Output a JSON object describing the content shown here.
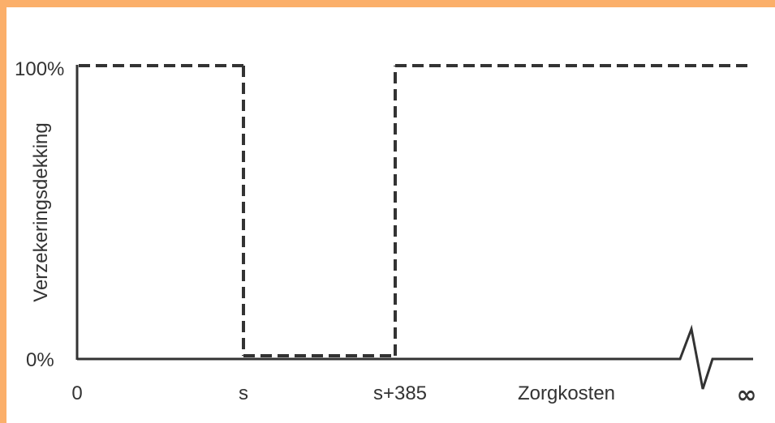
{
  "chart_data": {
    "type": "line",
    "title": "",
    "ylabel": "Verzekeringsdekking",
    "xlabel": "Zorgkosten",
    "x_ticks": [
      "0",
      "s",
      "s+385",
      "∞"
    ],
    "y_ticks": [
      "0%",
      "100%"
    ],
    "series": [
      {
        "points": [
          {
            "x": "0",
            "y": 100
          },
          {
            "x": "s",
            "y": 100
          },
          {
            "x": "s",
            "y": 0
          },
          {
            "x": "s+385",
            "y": 0
          },
          {
            "x": "s+385",
            "y": 100
          },
          {
            "x": "∞",
            "y": 100
          }
        ]
      }
    ],
    "ylim": [
      0,
      100
    ],
    "grid": false,
    "axis_break": true,
    "colors": {
      "line": "#333333",
      "frame": "#fbaf6a",
      "background": "#ffffff"
    }
  }
}
